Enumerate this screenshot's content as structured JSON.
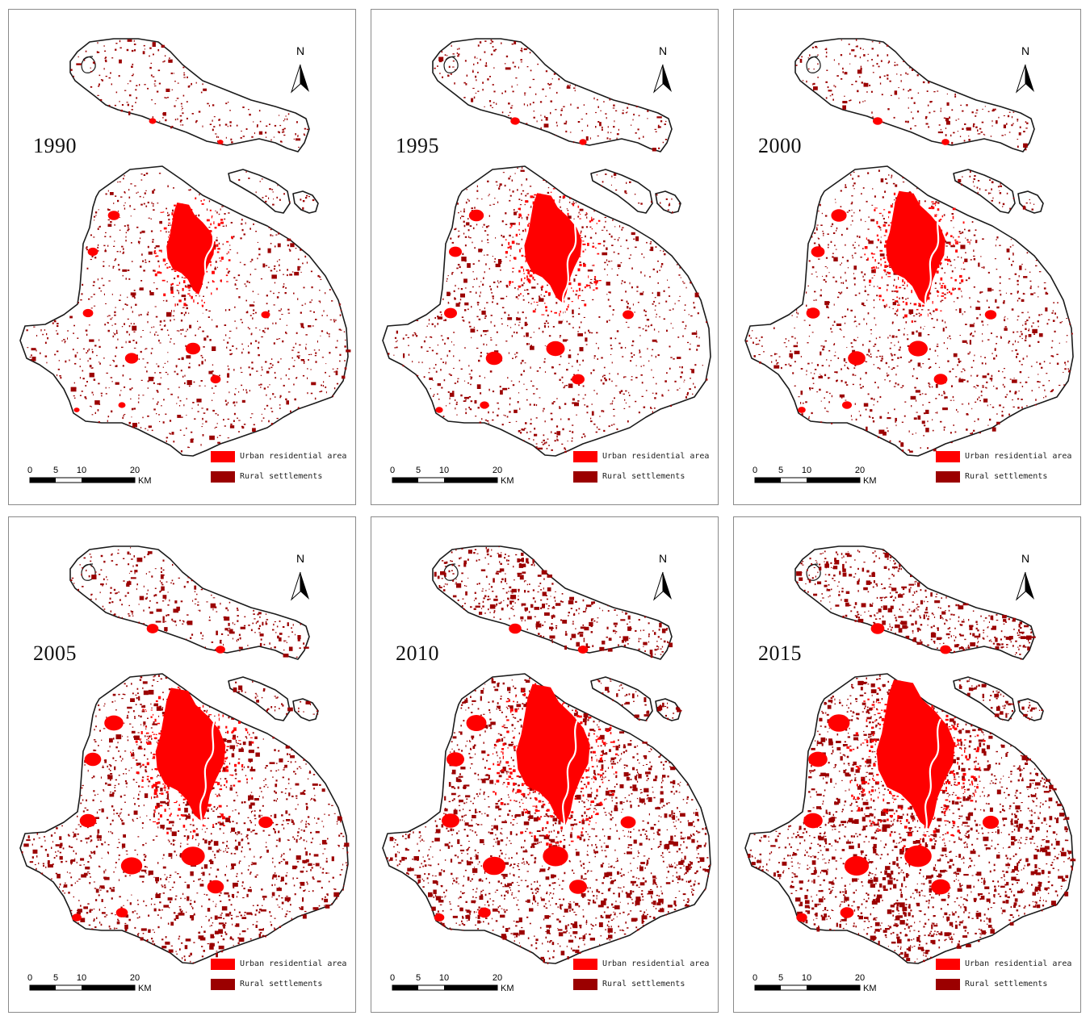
{
  "map": {
    "colors": {
      "urban": "#ff0000",
      "rural": "#9b0000",
      "boundary": "#1a1a1a",
      "background": "#ffffff"
    },
    "north_label": "N",
    "scale_bar": {
      "ticks": [
        "0",
        "5",
        "10",
        "20"
      ],
      "unit": "KM"
    },
    "legend": [
      {
        "label": "Urban residential area",
        "color": "#ff0000"
      },
      {
        "label": "Rural settlements",
        "color": "#9b0000"
      }
    ],
    "panels": [
      {
        "year": "1990",
        "urban_level": 0.15,
        "rural_level": 0.2
      },
      {
        "year": "1995",
        "urban_level": 0.32,
        "rural_level": 0.2
      },
      {
        "year": "2000",
        "urban_level": 0.36,
        "rural_level": 0.23
      },
      {
        "year": "2005",
        "urban_level": 0.55,
        "rural_level": 0.45
      },
      {
        "year": "2010",
        "urban_level": 0.62,
        "rural_level": 0.65
      },
      {
        "year": "2015",
        "urban_level": 0.7,
        "rural_level": 0.8
      }
    ]
  }
}
